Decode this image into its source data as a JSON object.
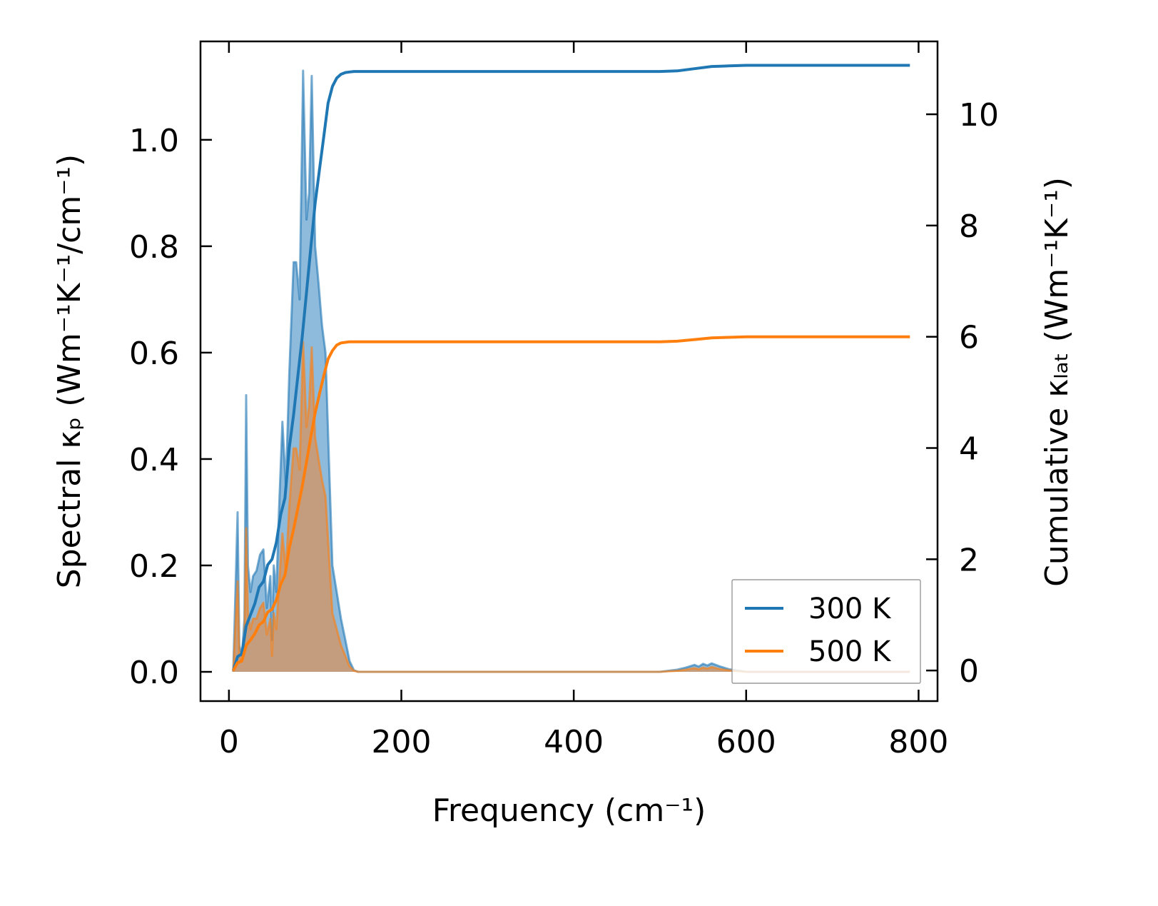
{
  "chart_data": {
    "type": "line",
    "xlabel": "Frequency (cm⁻¹)",
    "ylabel_left": "Spectral κₚ (Wm⁻¹K⁻¹/cm⁻¹)",
    "ylabel_right": "Cumulative κₗₐₜ (Wm⁻¹K⁻¹)",
    "xlim": [
      -33,
      822
    ],
    "ylim_left": [
      -0.055,
      1.185
    ],
    "ylim_right": [
      -0.55,
      11.31
    ],
    "x_ticks": [
      0,
      200,
      400,
      600,
      800
    ],
    "y_ticks_left": [
      0.0,
      0.2,
      0.4,
      0.6,
      0.8,
      1.0
    ],
    "y_tick_labels_left": [
      "0.0",
      "0.2",
      "0.4",
      "0.6",
      "0.8",
      "1.0"
    ],
    "y_ticks_right": [
      0,
      2,
      4,
      6,
      8,
      10
    ],
    "grid": false,
    "legend_position": "lower-right",
    "colors": {
      "300K": "#1f77b4",
      "500K": "#ff7f0e",
      "fill_300K": "#7aaed6",
      "fill_500K": "#c99a72"
    },
    "legend": [
      {
        "label": "300 K",
        "color": "#1f77b4"
      },
      {
        "label": "500 K",
        "color": "#ff7f0e"
      }
    ],
    "series": [
      {
        "name": "300 K",
        "axis": "left",
        "style": "filled",
        "x": [
          5,
          10,
          12,
          15,
          18,
          20,
          22,
          25,
          28,
          32,
          36,
          40,
          44,
          48,
          50,
          52,
          55,
          58,
          62,
          66,
          70,
          75,
          78,
          82,
          86,
          90,
          93,
          96,
          100,
          104,
          108,
          112,
          116,
          120,
          125,
          130,
          135,
          140,
          145,
          150,
          200,
          300,
          400,
          500,
          520,
          530,
          540,
          545,
          550,
          555,
          560,
          570,
          580,
          600,
          700,
          790
        ],
        "values": [
          0.0,
          0.3,
          0.05,
          0.03,
          0.1,
          0.52,
          0.2,
          0.15,
          0.18,
          0.19,
          0.22,
          0.23,
          0.12,
          0.18,
          0.06,
          0.2,
          0.15,
          0.3,
          0.47,
          0.35,
          0.56,
          0.77,
          0.77,
          0.7,
          1.13,
          0.85,
          0.9,
          1.12,
          0.8,
          0.73,
          0.65,
          0.6,
          0.4,
          0.2,
          0.15,
          0.1,
          0.06,
          0.02,
          0.003,
          0.0,
          0.0,
          0.0,
          0.0,
          0.0,
          0.004,
          0.008,
          0.013,
          0.01,
          0.015,
          0.012,
          0.016,
          0.01,
          0.005,
          0.0,
          0.0,
          0.0
        ]
      },
      {
        "name": "500 K",
        "axis": "left",
        "style": "filled",
        "x": [
          5,
          10,
          12,
          15,
          18,
          20,
          22,
          25,
          28,
          32,
          36,
          40,
          44,
          48,
          50,
          52,
          55,
          58,
          62,
          66,
          70,
          75,
          78,
          82,
          86,
          90,
          93,
          96,
          100,
          104,
          108,
          112,
          116,
          120,
          125,
          130,
          135,
          140,
          145,
          150,
          200,
          300,
          400,
          500,
          520,
          530,
          540,
          545,
          550,
          555,
          560,
          570,
          580,
          600,
          700,
          790
        ],
        "values": [
          0.0,
          0.17,
          0.03,
          0.02,
          0.06,
          0.27,
          0.11,
          0.08,
          0.1,
          0.1,
          0.12,
          0.13,
          0.07,
          0.1,
          0.03,
          0.11,
          0.08,
          0.16,
          0.26,
          0.19,
          0.31,
          0.42,
          0.42,
          0.38,
          0.62,
          0.46,
          0.5,
          0.61,
          0.44,
          0.4,
          0.36,
          0.33,
          0.22,
          0.11,
          0.08,
          0.05,
          0.03,
          0.01,
          0.002,
          0.0,
          0.0,
          0.0,
          0.0,
          0.0,
          0.002,
          0.004,
          0.007,
          0.005,
          0.008,
          0.006,
          0.009,
          0.005,
          0.003,
          0.0,
          0.0,
          0.0
        ]
      },
      {
        "name": "300 K",
        "axis": "right",
        "style": "line",
        "x": [
          5,
          10,
          15,
          20,
          25,
          30,
          35,
          40,
          45,
          50,
          55,
          60,
          65,
          70,
          75,
          80,
          85,
          90,
          95,
          100,
          105,
          110,
          115,
          120,
          125,
          130,
          135,
          140,
          145,
          150,
          200,
          300,
          400,
          500,
          520,
          540,
          560,
          580,
          600,
          700,
          790
        ],
        "values": [
          0.0,
          0.25,
          0.3,
          0.8,
          1.0,
          1.2,
          1.5,
          1.6,
          1.9,
          2.0,
          2.3,
          2.8,
          3.1,
          4.0,
          4.6,
          5.3,
          6.0,
          6.8,
          7.6,
          8.4,
          9.0,
          9.6,
          10.2,
          10.5,
          10.65,
          10.72,
          10.75,
          10.76,
          10.77,
          10.77,
          10.77,
          10.77,
          10.77,
          10.77,
          10.78,
          10.82,
          10.86,
          10.87,
          10.88,
          10.88,
          10.88
        ]
      },
      {
        "name": "500 K",
        "axis": "right",
        "style": "line",
        "x": [
          5,
          10,
          15,
          20,
          25,
          30,
          35,
          40,
          45,
          50,
          55,
          60,
          65,
          70,
          75,
          80,
          85,
          90,
          95,
          100,
          105,
          110,
          115,
          120,
          125,
          130,
          135,
          140,
          145,
          150,
          200,
          300,
          400,
          500,
          520,
          540,
          560,
          580,
          600,
          700,
          790
        ],
        "values": [
          0.0,
          0.14,
          0.17,
          0.45,
          0.55,
          0.66,
          0.82,
          0.88,
          1.05,
          1.1,
          1.27,
          1.55,
          1.71,
          2.2,
          2.54,
          2.92,
          3.31,
          3.75,
          4.2,
          4.63,
          4.97,
          5.3,
          5.6,
          5.75,
          5.85,
          5.89,
          5.9,
          5.91,
          5.91,
          5.91,
          5.91,
          5.91,
          5.91,
          5.91,
          5.92,
          5.95,
          5.98,
          5.99,
          6.0,
          6.0,
          6.0
        ]
      }
    ]
  }
}
